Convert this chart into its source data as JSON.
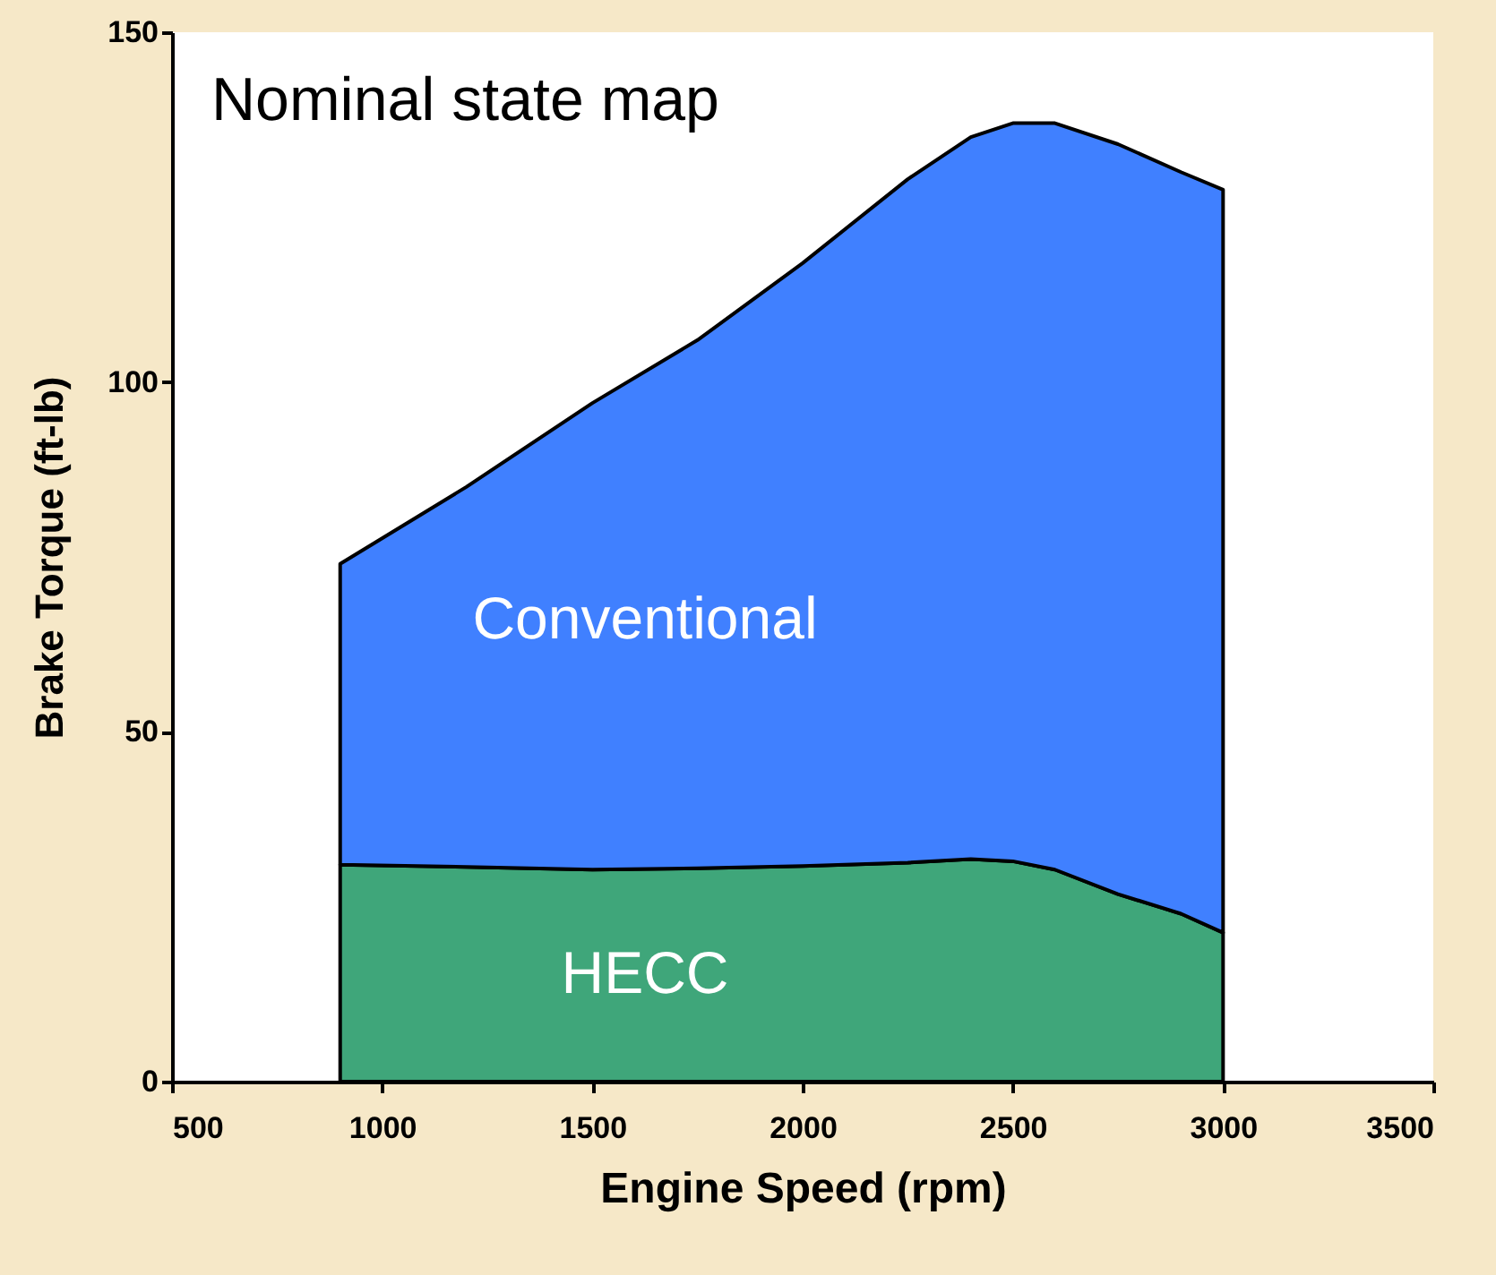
{
  "chart_data": {
    "type": "area",
    "title": "Nominal state map",
    "xlabel": "Engine Speed (rpm)",
    "ylabel": "Brake Torque (ft-lb)",
    "x": [
      900,
      1200,
      1500,
      1750,
      2000,
      2250,
      2400,
      2500,
      2600,
      2750,
      2900,
      3000
    ],
    "stacked": true,
    "series": [
      {
        "name": "HECC",
        "color": "#3fa67a",
        "values": [
          31,
          30.7,
          30.3,
          30.5,
          30.8,
          31.3,
          31.8,
          31.5,
          30.3,
          26.8,
          24,
          21.3
        ]
      },
      {
        "name": "Conventional",
        "color": "#4080ff",
        "values": [
          43,
          54.3,
          66.7,
          75.5,
          86.2,
          97.7,
          103.2,
          105.5,
          106.7,
          107.2,
          106,
          106.2
        ]
      }
    ],
    "xlim": [
      500,
      3500
    ],
    "xticks": [
      500,
      1000,
      1500,
      2000,
      2500,
      3000,
      3500
    ],
    "ylim": [
      0,
      150
    ],
    "yticks": [
      0,
      50,
      100,
      150
    ],
    "grid": false,
    "legend": false
  }
}
